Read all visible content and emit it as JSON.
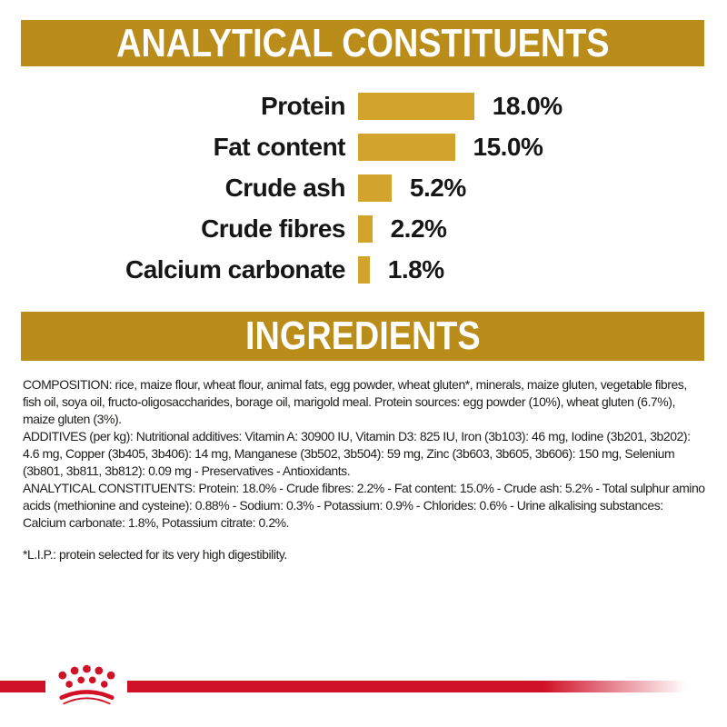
{
  "colors": {
    "banner_gold": "#BA8D1B",
    "bar_gold": "#D2A42C",
    "brand_red": "#D01228",
    "banner_text": "#FFFFFF",
    "body_text": "#1D1D1B"
  },
  "banners": {
    "analytical": "ANALYTICAL CONSTITUENTS",
    "ingredients": "INGREDIENTS"
  },
  "chart_data": {
    "type": "bar",
    "orientation": "horizontal",
    "title": "ANALYTICAL CONSTITUENTS",
    "categories": [
      "Protein",
      "Fat content",
      "Crude ash",
      "Crude fibres",
      "Calcium carbonate"
    ],
    "values": [
      18.0,
      15.0,
      5.2,
      2.2,
      1.8
    ],
    "value_labels": [
      "18.0%",
      "15.0%",
      "5.2%",
      "2.2%",
      "1.8%"
    ],
    "unit": "%",
    "xlim": [
      0,
      20
    ],
    "bar_color": "#D2A42C",
    "grid": false,
    "value_label_position": "right-of-bar"
  },
  "ingredients": {
    "composition": "COMPOSITION: rice, maize flour, wheat flour, animal fats, egg powder, wheat gluten*, minerals, maize gluten, vegetable fibres, fish oil, soya oil, fructo-oligosaccharides, borage oil, marigold meal. Protein sources: egg powder (10%), wheat gluten (6.7%), maize gluten (3%).",
    "additives": "ADDITIVES (per kg): Nutritional additives: Vitamin A: 30900 IU, Vitamin D3: 825 IU, Iron (3b103): 46 mg, Iodine (3b201, 3b202): 4.6 mg, Copper (3b405, 3b406): 14 mg, Manganese (3b502, 3b504): 59 mg, Zinc (3b603, 3b605, 3b606): 150 mg, Selenium (3b801, 3b811, 3b812): 0.09 mg - Preservatives - Antioxidants.",
    "analytical_constituents": "ANALYTICAL CONSTITUENTS: Protein: 18.0% - Crude fibres: 2.2% - Fat content: 15.0% - Crude ash: 5.2% - Total sulphur amino acids (methionine and cysteine): 0.88% - Sodium: 0.3% - Potassium: 0.9% - Chlorides: 0.6% - Urine alkalising substances: Calcium carbonate: 1.8%, Potassium citrate: 0.2%.",
    "footnote": "*L.I.P.: protein selected for its very high digestibility."
  },
  "footer": {
    "logo": "royal-canin-crown"
  }
}
